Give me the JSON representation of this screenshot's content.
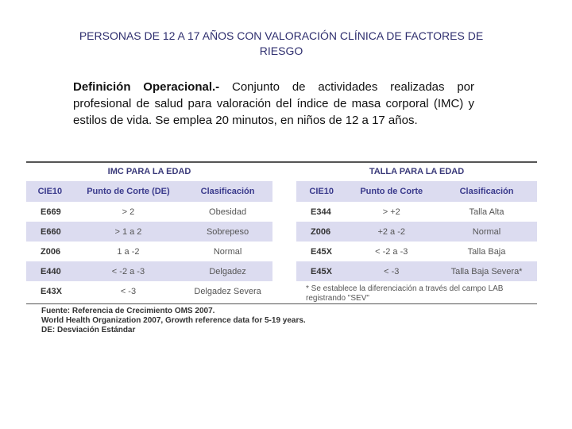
{
  "title": "PERSONAS DE 12 A 17 AÑOS CON VALORACIÓN CLÍNICA DE FACTORES DE RIESGO",
  "definition": {
    "label": "Definición Operacional.-",
    "text": "Conjunto de actividades realizadas por profesional de salud para valoración del índice de masa corporal (IMC) y estilos de vida. Se emplea 20 minutos, en niños de 12 a 17 años."
  },
  "left_table": {
    "title": "IMC PARA LA EDAD",
    "header": [
      "CIE10",
      "Punto de Corte (DE)",
      "Clasificación"
    ],
    "rows": [
      [
        "E669",
        "> 2",
        "Obesidad"
      ],
      [
        "E660",
        "> 1 a 2",
        "Sobrepeso"
      ],
      [
        "Z006",
        "1 a -2",
        "Normal"
      ],
      [
        "E440",
        "< -2 a -3",
        "Delgadez"
      ],
      [
        "E43X",
        "< -3",
        "Delgadez Severa"
      ]
    ]
  },
  "right_table": {
    "title": "TALLA PARA LA EDAD",
    "header": [
      "CIE10",
      "Punto de Corte",
      "Clasificación"
    ],
    "rows": [
      [
        "E344",
        "> +2",
        "Talla Alta"
      ],
      [
        "Z006",
        "+2 a -2",
        "Normal"
      ],
      [
        "E45X",
        "< -2 a -3",
        "Talla Baja"
      ],
      [
        "E45X",
        "< -3",
        "Talla Baja Severa*"
      ]
    ],
    "note": "* Se establece la diferenciación a través del campo LAB registrando \"SEV\""
  },
  "source": [
    "Fuente: Referencia de Crecimiento OMS 2007.",
    "World Health Organization 2007, Growth reference data for 5-19 years.",
    "DE: Desviación Estándar"
  ]
}
